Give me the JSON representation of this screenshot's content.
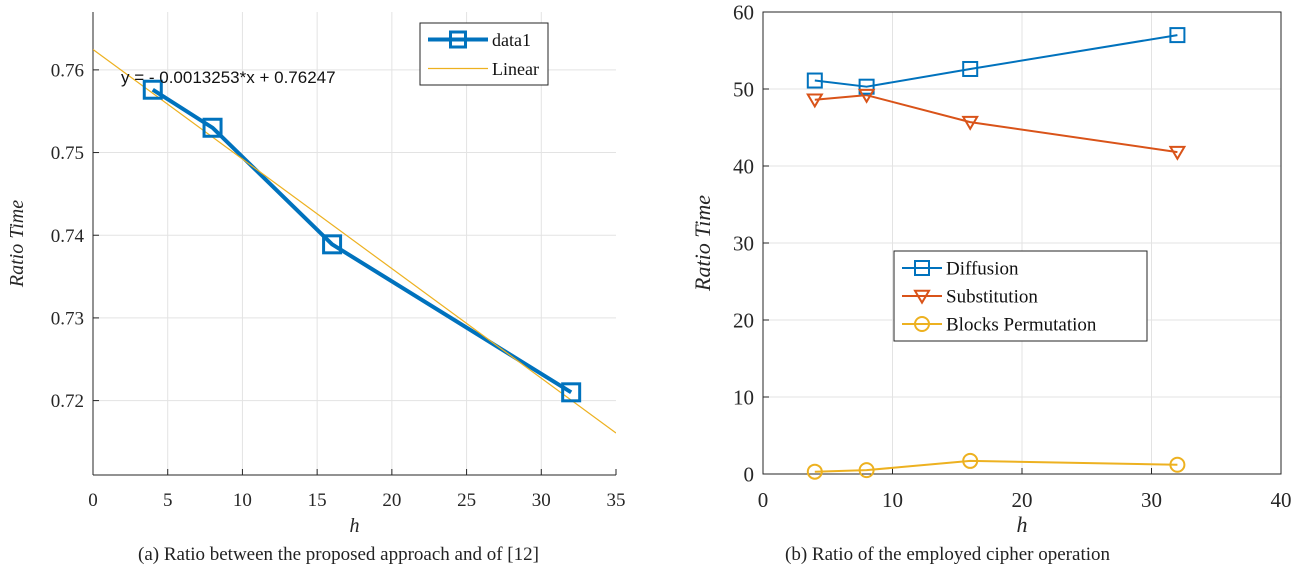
{
  "chart_data": [
    {
      "type": "line",
      "caption": "(a) Ratio between the proposed approach and of [12]",
      "xlabel": "h",
      "ylabel": "Ratio Time",
      "xlim": [
        0,
        35
      ],
      "ylim": [
        0.711,
        0.767
      ],
      "xticks": [
        0,
        5,
        10,
        15,
        20,
        25,
        30,
        35
      ],
      "yticks": [
        0.72,
        0.73,
        0.74,
        0.75,
        0.76
      ],
      "ytick_labels": [
        "0.72",
        "0.73",
        "0.74",
        "0.75",
        "0.76"
      ],
      "grid": true,
      "legend_position": "top-right",
      "series": [
        {
          "name": "data1",
          "marker": "square",
          "color": "#0072BD",
          "x": [
            4,
            8,
            16,
            32
          ],
          "y": [
            0.7576,
            0.753,
            0.7389,
            0.721
          ]
        },
        {
          "name": "Linear",
          "marker": "none",
          "color": "#EDB120",
          "x": [
            0,
            35
          ],
          "y": [
            0.76247,
            0.71608
          ]
        }
      ],
      "annotation": "y = - 0.0013253*x + 0.76247"
    },
    {
      "type": "line",
      "caption": "(b) Ratio of the employed cipher operation",
      "xlabel": "h",
      "ylabel": "Ratio Time",
      "xlim": [
        0,
        40
      ],
      "ylim": [
        0,
        60
      ],
      "xticks": [
        0,
        10,
        20,
        30,
        40
      ],
      "yticks": [
        0,
        10,
        20,
        30,
        40,
        50,
        60
      ],
      "grid": true,
      "legend_position": "center",
      "series": [
        {
          "name": "Diffusion",
          "marker": "square",
          "color": "#0072BD",
          "x": [
            4,
            8,
            16,
            32
          ],
          "y": [
            51.1,
            50.3,
            52.6,
            57.0
          ]
        },
        {
          "name": "Substitution",
          "marker": "triangle-down",
          "color": "#D95319",
          "x": [
            4,
            8,
            16,
            32
          ],
          "y": [
            48.6,
            49.2,
            45.7,
            41.8
          ]
        },
        {
          "name": "Blocks Permutation",
          "marker": "circle",
          "color": "#EDB120",
          "x": [
            4,
            8,
            16,
            32
          ],
          "y": [
            0.3,
            0.5,
            1.7,
            1.2
          ]
        }
      ]
    }
  ]
}
